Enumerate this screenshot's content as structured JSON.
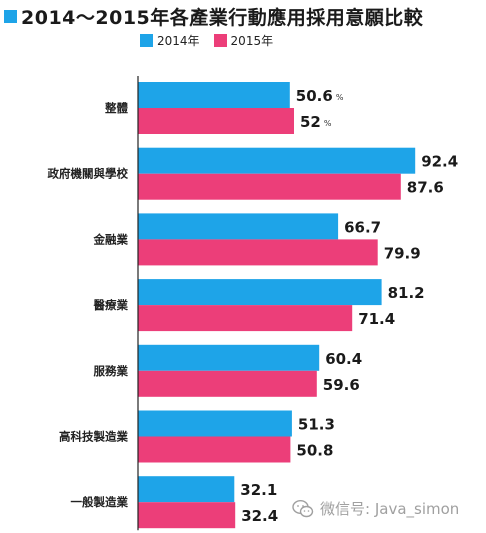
{
  "title": "2014～2015年各產業行動應用採用意願比較",
  "colors": {
    "series_2014": "#1ea4e8",
    "series_2015": "#ec3e79",
    "title_square": "#1ea4e8",
    "axis": "#222222"
  },
  "legend": [
    {
      "label": "2014年"
    },
    {
      "label": "2015年"
    }
  ],
  "watermark": {
    "text": "微信号: Java_simon",
    "icon": "wechat-icon"
  },
  "chart_data": {
    "type": "bar",
    "orientation": "horizontal",
    "title": "2014～2015年各產業行動應用採用意願比較",
    "categories": [
      "整體",
      "政府機關與學校",
      "金融業",
      "醫療業",
      "服務業",
      "高科技製造業",
      "一般製造業"
    ],
    "series": [
      {
        "name": "2014年",
        "values": [
          50.6,
          92.4,
          66.7,
          81.2,
          60.4,
          51.3,
          32.1
        ],
        "labels": [
          "50.6",
          "92.4",
          "66.7",
          "81.2",
          "60.4",
          "51.3",
          "32.1"
        ]
      },
      {
        "name": "2015年",
        "values": [
          52,
          87.6,
          79.9,
          71.4,
          59.6,
          50.8,
          32.4
        ],
        "labels": [
          "52",
          "87.6",
          "79.9",
          "71.4",
          "59.6",
          "50.8",
          "32.4"
        ]
      }
    ],
    "unit_labels": [
      "%",
      "%"
    ],
    "xlim": [
      0,
      100
    ],
    "grid": false,
    "legend_position": "top"
  }
}
